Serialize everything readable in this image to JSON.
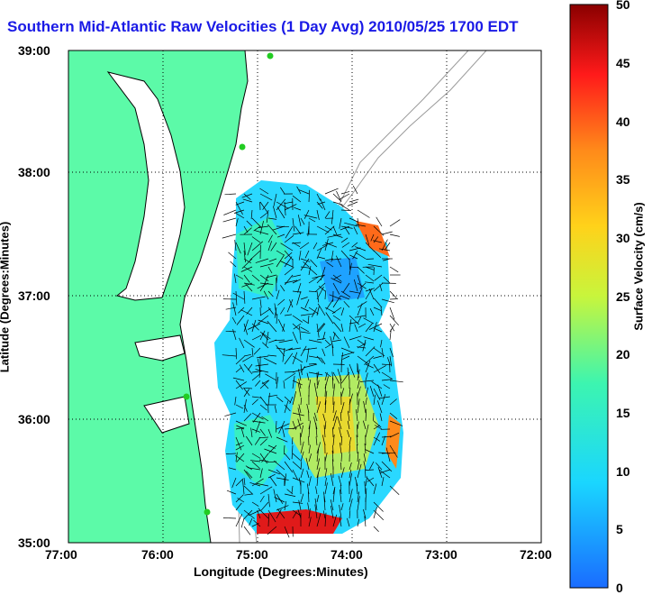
{
  "title": "Southern Mid-Atlantic Raw Velocities (1 Day Avg) 2010/05/25 1700 EDT",
  "xlabel": "Longitude (Degrees:Minutes)",
  "ylabel": "Latitude (Degrees:Minutes)",
  "colorbar": {
    "label": "Surface Velocity (cm/s)",
    "ticks": [
      "50",
      "45",
      "40",
      "35",
      "30",
      "25",
      "20",
      "15",
      "10",
      "5",
      "0"
    ],
    "min": 0,
    "max": 50
  },
  "x_ticks": [
    "77:00",
    "76:00",
    "75:00",
    "74:00",
    "73:00",
    "72:00"
  ],
  "y_ticks": [
    "39:00",
    "38:00",
    "37:00",
    "36:00",
    "35:00"
  ],
  "colors": {
    "land": "#5cfaa8",
    "coast": "#000000",
    "bathymetry": "#9a9a9a",
    "title": "#1a1ae6",
    "station": "#22cc22"
  }
}
